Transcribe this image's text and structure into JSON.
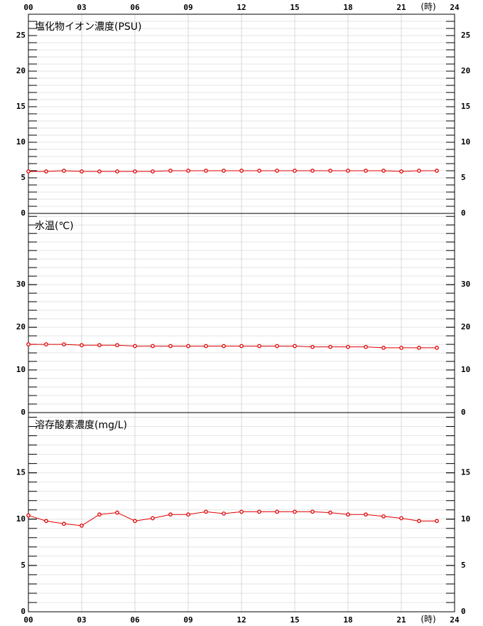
{
  "chart_data": [
    {
      "type": "line",
      "title": "塩化物イオン濃度(PSU)",
      "x_unit": "(時)",
      "x": [
        0,
        1,
        2,
        3,
        4,
        5,
        6,
        7,
        8,
        9,
        10,
        11,
        12,
        13,
        14,
        15,
        16,
        17,
        18,
        19,
        20,
        21,
        22,
        23
      ],
      "xlim": [
        0,
        24
      ],
      "xticks": [
        {
          "value": 0,
          "label": "00"
        },
        {
          "value": 3,
          "label": "03"
        },
        {
          "value": 6,
          "label": "06"
        },
        {
          "value": 9,
          "label": "09"
        },
        12,
        15,
        18,
        21,
        24
      ],
      "ylim": [
        0,
        28
      ],
      "yticks": [
        0,
        5,
        10,
        15,
        20,
        25
      ],
      "minor_step": 1,
      "grid": true,
      "series": [
        {
          "color": "#e00000",
          "values": [
            5.9,
            5.9,
            6.0,
            5.9,
            5.9,
            5.9,
            5.9,
            5.9,
            6.0,
            6.0,
            6.0,
            6.0,
            6.0,
            6.0,
            6.0,
            6.0,
            6.0,
            6.0,
            6.0,
            6.0,
            6.0,
            5.9,
            6.0,
            6.0
          ]
        }
      ]
    },
    {
      "type": "line",
      "title": "水温(℃)",
      "x": [
        0,
        1,
        2,
        3,
        4,
        5,
        6,
        7,
        8,
        9,
        10,
        11,
        12,
        13,
        14,
        15,
        16,
        17,
        18,
        19,
        20,
        21,
        22,
        23
      ],
      "xlim": [
        0,
        24
      ],
      "xticks": [
        {
          "value": 0,
          "label": "00"
        },
        {
          "value": 3,
          "label": "03"
        },
        {
          "value": 6,
          "label": "06"
        },
        {
          "value": 9,
          "label": "09"
        },
        12,
        15,
        18,
        21,
        24
      ],
      "ylim": [
        0,
        46.7
      ],
      "yticks": [
        0,
        10,
        20,
        30
      ],
      "minor_step": 2,
      "grid": true,
      "series": [
        {
          "color": "#e00000",
          "values": [
            16.0,
            16.0,
            16.0,
            15.8,
            15.8,
            15.8,
            15.6,
            15.6,
            15.6,
            15.6,
            15.6,
            15.6,
            15.6,
            15.6,
            15.6,
            15.6,
            15.4,
            15.4,
            15.4,
            15.4,
            15.2,
            15.2,
            15.2,
            15.2
          ]
        }
      ]
    },
    {
      "type": "line",
      "title": "溶存酸素濃度(mg/L)",
      "x_unit": "(時)",
      "x": [
        0,
        1,
        2,
        3,
        4,
        5,
        6,
        7,
        8,
        9,
        10,
        11,
        12,
        13,
        14,
        15,
        16,
        17,
        18,
        19,
        20,
        21,
        22,
        23
      ],
      "xlim": [
        0,
        24
      ],
      "xticks": [
        {
          "value": 0,
          "label": "00"
        },
        {
          "value": 3,
          "label": "03"
        },
        {
          "value": 6,
          "label": "06"
        },
        {
          "value": 9,
          "label": "09"
        },
        12,
        15,
        18,
        21,
        24
      ],
      "ylim": [
        0,
        21.5
      ],
      "yticks": [
        0,
        5,
        10,
        15
      ],
      "minor_step": 1,
      "grid": true,
      "series": [
        {
          "color": "#e00000",
          "values": [
            10.4,
            9.8,
            9.5,
            9.3,
            10.5,
            10.7,
            9.8,
            10.1,
            10.5,
            10.5,
            10.8,
            10.6,
            10.8,
            10.8,
            10.8,
            10.8,
            10.8,
            10.7,
            10.5,
            10.5,
            10.3,
            10.1,
            9.8,
            9.8
          ]
        }
      ]
    }
  ]
}
